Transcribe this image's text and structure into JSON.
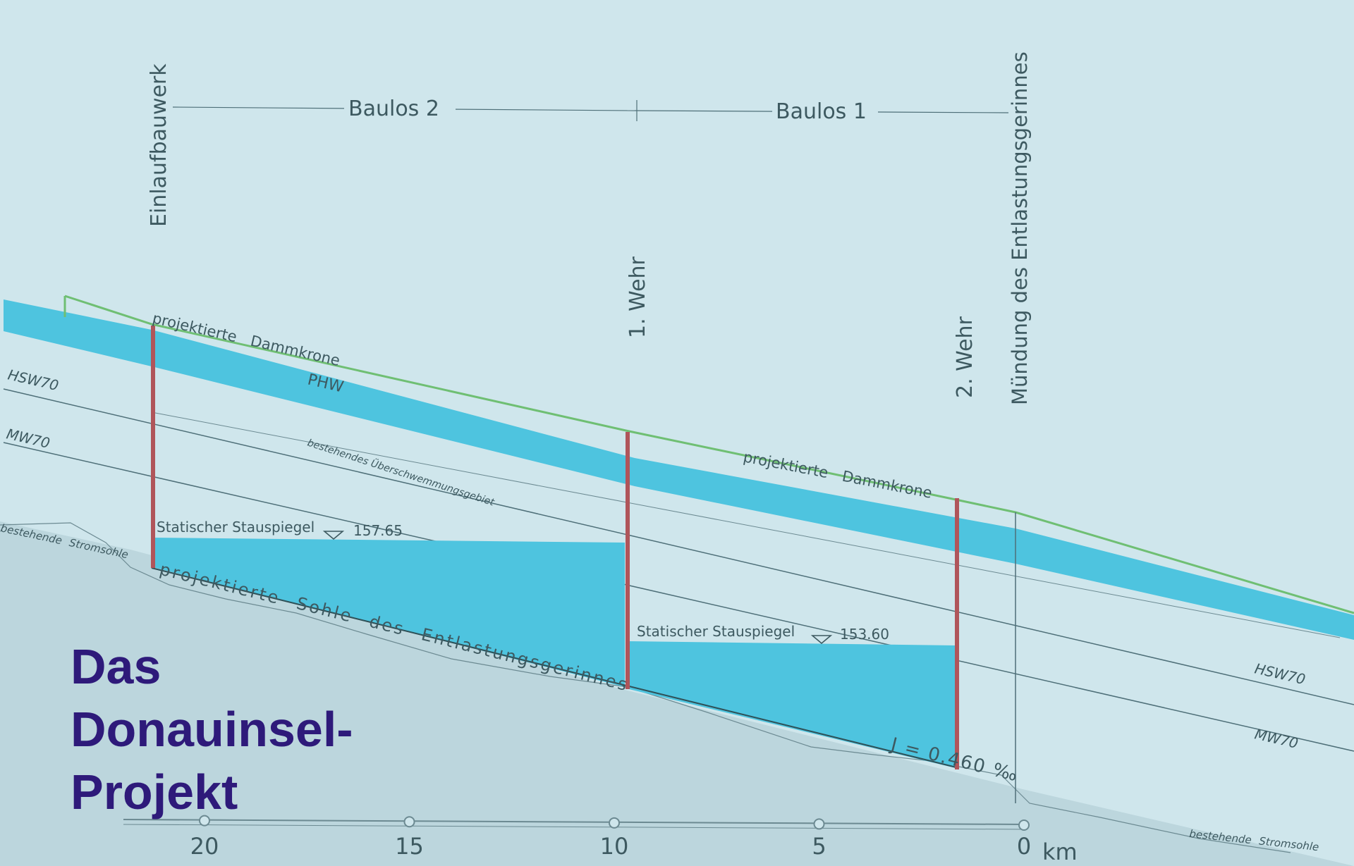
{
  "title_lines": [
    "Das",
    "Donauinsel-",
    "Projekt"
  ],
  "labels": {
    "einlaufbauwerk": "Einlaufbauwerk",
    "baulos2": "Baulos 2",
    "baulos1": "Baulos 1",
    "muendung": "Mündung des Entlastungsgerinnes",
    "wehr1": "1. Wehr",
    "wehr2": "2. Wehr",
    "dammkrone_left": "projektierte Dammkrone",
    "dammkrone_right": "projektierte Dammkrone",
    "phw": "PHW",
    "hsw_left": "HSW70",
    "mw_left": "MW70",
    "hsw_right": "HSW70",
    "mw_right": "MW70",
    "ueberschwemmung": "bestehendes Überschwemmungsgebiet",
    "stromsohle_left": "bestehende Stromsohle",
    "stromsohle_right": "bestehende Stromsohle",
    "stauspiegel1": "Statischer Stauspiegel",
    "stauspiegel1_value": "157.65",
    "stauspiegel2": "Statischer Stauspiegel",
    "stauspiegel2_value": "153.60",
    "sohle": "projektierte Sohle des Entlastungsgerinnes",
    "gradient": "J = 0.460 ‰"
  },
  "axis": {
    "ticks": [
      "20",
      "15",
      "10",
      "5",
      "0"
    ],
    "unit": "km"
  },
  "colors": {
    "background": "#cfe6ec",
    "water": "#4ec4df",
    "dam_crest": "#6fbf73",
    "structure": "#b0555a",
    "title": "#2e1a7a",
    "line": "#4e6f78"
  }
}
